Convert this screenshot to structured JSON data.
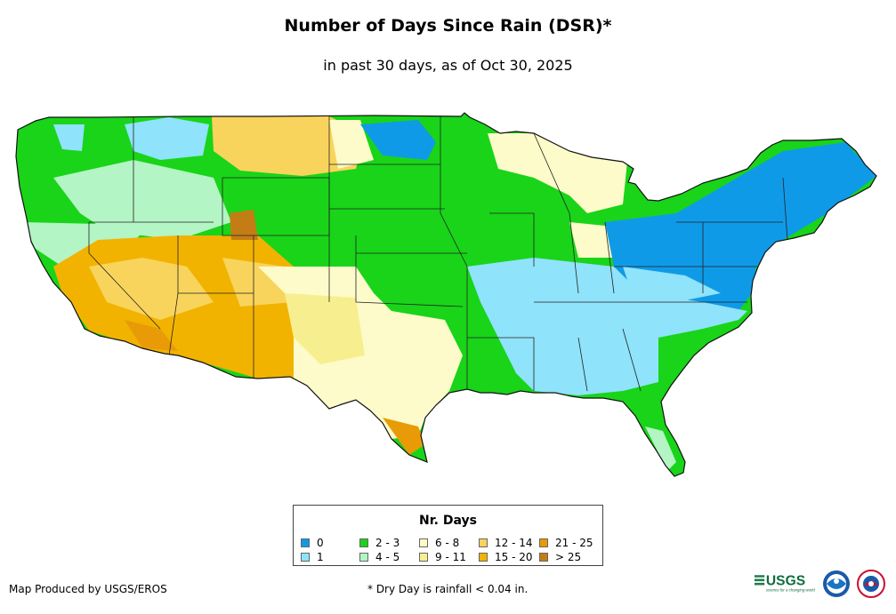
{
  "title": "Number of Days Since Rain (DSR)*",
  "subtitle": "in past 30 days, as of Oct 30, 2025",
  "legend": {
    "title": "Nr. Days",
    "items": [
      {
        "label": "0",
        "color": "#0f9ae8"
      },
      {
        "label": "1",
        "color": "#8fe3fa"
      },
      {
        "label": "2 - 3",
        "color": "#19d419"
      },
      {
        "label": "4 - 5",
        "color": "#b3f5c4"
      },
      {
        "label": "6 - 8",
        "color": "#fdfbc9"
      },
      {
        "label": "9 - 11",
        "color": "#f7ef8f"
      },
      {
        "label": "12 - 14",
        "color": "#f9d45c"
      },
      {
        "label": "15 - 20",
        "color": "#f2b300"
      },
      {
        "label": "21 - 25",
        "color": "#e89b07"
      },
      {
        "label": "> 25",
        "color": "#c47d15"
      }
    ]
  },
  "credit": "Map Produced by USGS/EROS",
  "footnote": "* Dry Day is rainfall < 0.04 in.",
  "logos": {
    "usgs": "USGS",
    "usgs_tagline": "science for a changing world",
    "noaa": "NOAA",
    "nws": "NATIONAL WEATHER SERVICE"
  }
}
